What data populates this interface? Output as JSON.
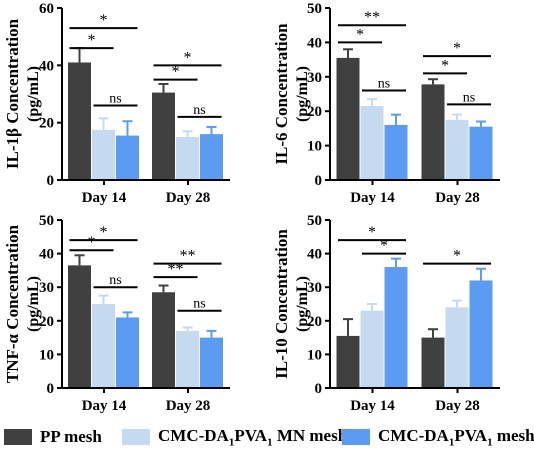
{
  "colors": {
    "pp": "#404040",
    "mn": "#c5d9f1",
    "cmc": "#5b9bf2",
    "axis": "#000000"
  },
  "legend": {
    "items": [
      {
        "key": "pp",
        "label": "PP mesh"
      },
      {
        "key": "mn",
        "label_pre": "CMC-DA",
        "sub1": "1",
        "label_mid": "PVA",
        "sub2": "1",
        "label_post": " MN mesh"
      },
      {
        "key": "cmc",
        "label_pre": "CMC-DA",
        "sub1": "1",
        "label_mid": "PVA",
        "sub2": "1",
        "label_post": " mesh"
      }
    ]
  },
  "chart_data": [
    {
      "type": "bar",
      "ylabel": "IL-1β  Concentration",
      "ylabel2": "(pg/mL)",
      "ylim": [
        0,
        60
      ],
      "yticks": [
        0,
        20,
        40,
        60
      ],
      "categories": [
        "Day 14",
        "Day 28"
      ],
      "series": [
        {
          "key": "pp",
          "values": [
            41,
            30.5
          ],
          "errors": [
            5,
            3
          ]
        },
        {
          "key": "mn",
          "values": [
            17.5,
            15
          ],
          "errors": [
            4,
            2
          ]
        },
        {
          "key": "cmc",
          "values": [
            15.5,
            16
          ],
          "errors": [
            5,
            2.5
          ]
        }
      ],
      "annotations": [
        {
          "group": 0,
          "from": 0,
          "to": 2,
          "y": 53,
          "label": "*"
        },
        {
          "group": 0,
          "from": 0,
          "to": 1,
          "y": 46,
          "label": "*"
        },
        {
          "group": 0,
          "from": 1,
          "to": 2,
          "y": 26,
          "label": "ns"
        },
        {
          "group": 1,
          "from": 0,
          "to": 2,
          "y": 40,
          "label": "*"
        },
        {
          "group": 1,
          "from": 0,
          "to": 1,
          "y": 35,
          "label": "*"
        },
        {
          "group": 1,
          "from": 1,
          "to": 2,
          "y": 22,
          "label": "ns"
        }
      ]
    },
    {
      "type": "bar",
      "ylabel": "IL-6  Concentration",
      "ylabel2": "(pg/mL)",
      "ylim": [
        0,
        50
      ],
      "yticks": [
        0,
        10,
        20,
        30,
        40,
        50
      ],
      "categories": [
        "Day 14",
        "Day 28"
      ],
      "series": [
        {
          "key": "pp",
          "values": [
            35.5,
            27.8
          ],
          "errors": [
            2.5,
            1.5
          ]
        },
        {
          "key": "mn",
          "values": [
            21.5,
            17.5
          ],
          "errors": [
            2,
            1.5
          ]
        },
        {
          "key": "cmc",
          "values": [
            16,
            15.5
          ],
          "errors": [
            3,
            1.5
          ]
        }
      ],
      "annotations": [
        {
          "group": 0,
          "from": 0,
          "to": 2,
          "y": 45,
          "label": "**"
        },
        {
          "group": 0,
          "from": 0,
          "to": 1,
          "y": 40,
          "label": "*"
        },
        {
          "group": 0,
          "from": 1,
          "to": 2,
          "y": 26,
          "label": "ns"
        },
        {
          "group": 1,
          "from": 0,
          "to": 2,
          "y": 36,
          "label": "*"
        },
        {
          "group": 1,
          "from": 0,
          "to": 1,
          "y": 31,
          "label": "*"
        },
        {
          "group": 1,
          "from": 1,
          "to": 2,
          "y": 22,
          "label": "ns"
        }
      ]
    },
    {
      "type": "bar",
      "ylabel": "TNF-α  Concentration",
      "ylabel2": "(pg/mL)",
      "ylim": [
        0,
        50
      ],
      "yticks": [
        0,
        10,
        20,
        30,
        40,
        50
      ],
      "categories": [
        "Day 14",
        "Day 28"
      ],
      "series": [
        {
          "key": "pp",
          "values": [
            36.5,
            28.5
          ],
          "errors": [
            3,
            2
          ]
        },
        {
          "key": "mn",
          "values": [
            25,
            17
          ],
          "errors": [
            2.5,
            1
          ]
        },
        {
          "key": "cmc",
          "values": [
            21,
            15
          ],
          "errors": [
            1.5,
            2
          ]
        }
      ],
      "annotations": [
        {
          "group": 0,
          "from": 0,
          "to": 2,
          "y": 44,
          "label": "*"
        },
        {
          "group": 0,
          "from": 0,
          "to": 1,
          "y": 41,
          "label": "*"
        },
        {
          "group": 0,
          "from": 1,
          "to": 2,
          "y": 30,
          "label": "ns"
        },
        {
          "group": 1,
          "from": 0,
          "to": 2,
          "y": 37,
          "label": "**"
        },
        {
          "group": 1,
          "from": 0,
          "to": 1,
          "y": 33,
          "label": "**"
        },
        {
          "group": 1,
          "from": 1,
          "to": 2,
          "y": 23,
          "label": "ns"
        }
      ]
    },
    {
      "type": "bar",
      "ylabel": "IL-10 Concentration",
      "ylabel2": "(pg/mL)",
      "ylim": [
        0,
        50
      ],
      "yticks": [
        0,
        10,
        20,
        30,
        40,
        50
      ],
      "categories": [
        "Day 14",
        "Day 28"
      ],
      "series": [
        {
          "key": "pp",
          "values": [
            15.5,
            15
          ],
          "errors": [
            5,
            2.5
          ]
        },
        {
          "key": "mn",
          "values": [
            23,
            24
          ],
          "errors": [
            2,
            2
          ]
        },
        {
          "key": "cmc",
          "values": [
            36,
            32
          ],
          "errors": [
            2.5,
            3.5
          ]
        }
      ],
      "annotations": [
        {
          "group": 0,
          "from": 0,
          "to": 2,
          "y": 44,
          "label": "*"
        },
        {
          "group": 0,
          "from": 1,
          "to": 2,
          "y": 40,
          "label": "*"
        },
        {
          "group": 1,
          "from": 0,
          "to": 2,
          "y": 37,
          "label": "*"
        }
      ]
    }
  ]
}
